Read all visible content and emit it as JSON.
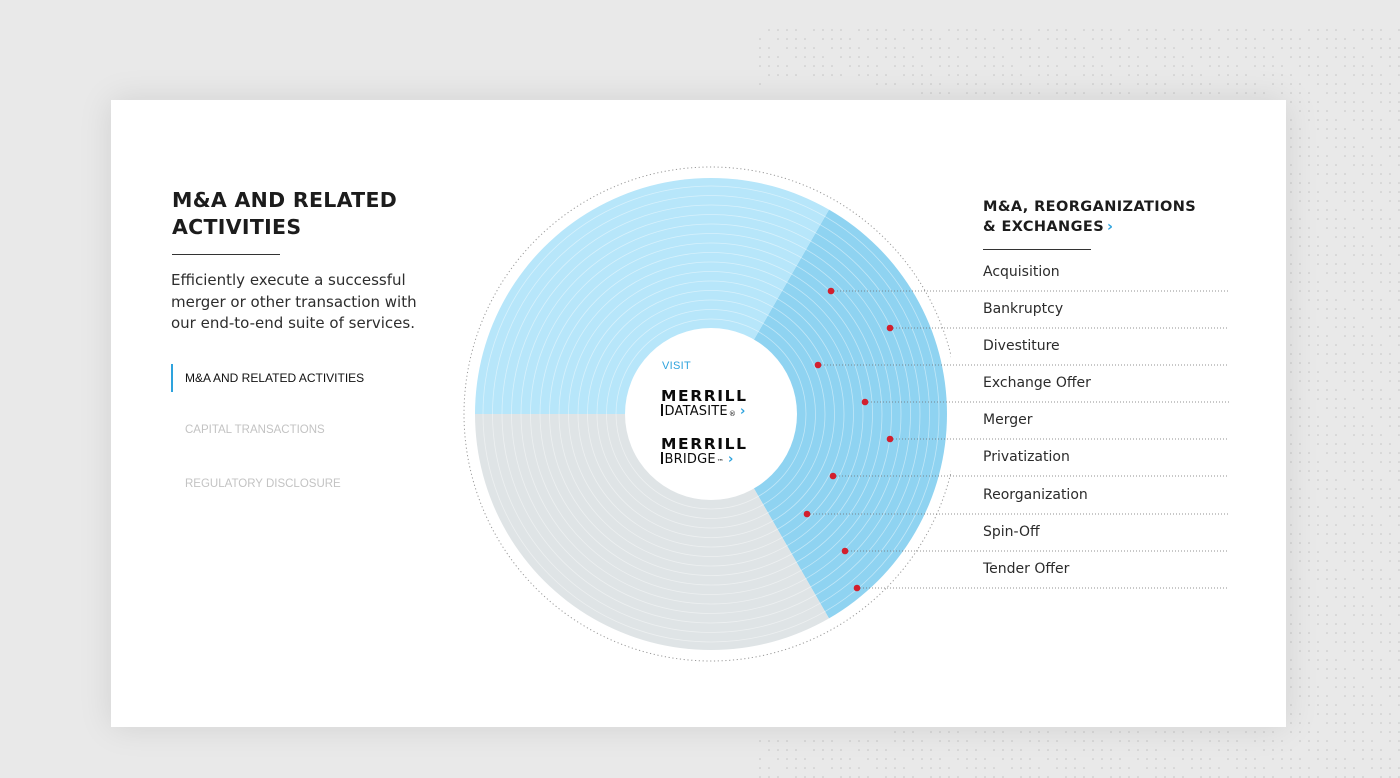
{
  "section": {
    "title": "M&A AND RELATED ACTIVITIES",
    "description": "Efficiently execute a successful merger or other transaction with our end-to-end suite of services."
  },
  "nav": {
    "items": [
      {
        "label": "M&A AND RELATED ACTIVITIES",
        "active": true
      },
      {
        "label": "CAPITAL TRANSACTIONS",
        "active": false
      },
      {
        "label": "REGULATORY DISCLOSURE",
        "active": false
      }
    ]
  },
  "center": {
    "visit_label": "VISIT",
    "logos": [
      {
        "line1": "MERRILL",
        "line2": "DATASITE",
        "mark": "®"
      },
      {
        "line1": "MERRILL",
        "line2": "BRIDGE",
        "mark": "™"
      }
    ]
  },
  "list": {
    "title_line1": "M&A, REORGANIZATIONS",
    "title_line2": "& EXCHANGES",
    "items": [
      "Acquisition",
      "Bankruptcy",
      "Divestiture",
      "Exchange Offer",
      "Merger",
      "Privatization",
      "Reorganization",
      "Spin-Off",
      "Tender Offer"
    ]
  },
  "colors": {
    "accent": "#2ea3dd",
    "highlight_segment": "#8fd3f1",
    "light_segment": "#b7e6fa",
    "grey_segment": "#dfe4e6",
    "marker": "#d21f2e"
  },
  "icons": [
    "chevron-right-icon"
  ]
}
